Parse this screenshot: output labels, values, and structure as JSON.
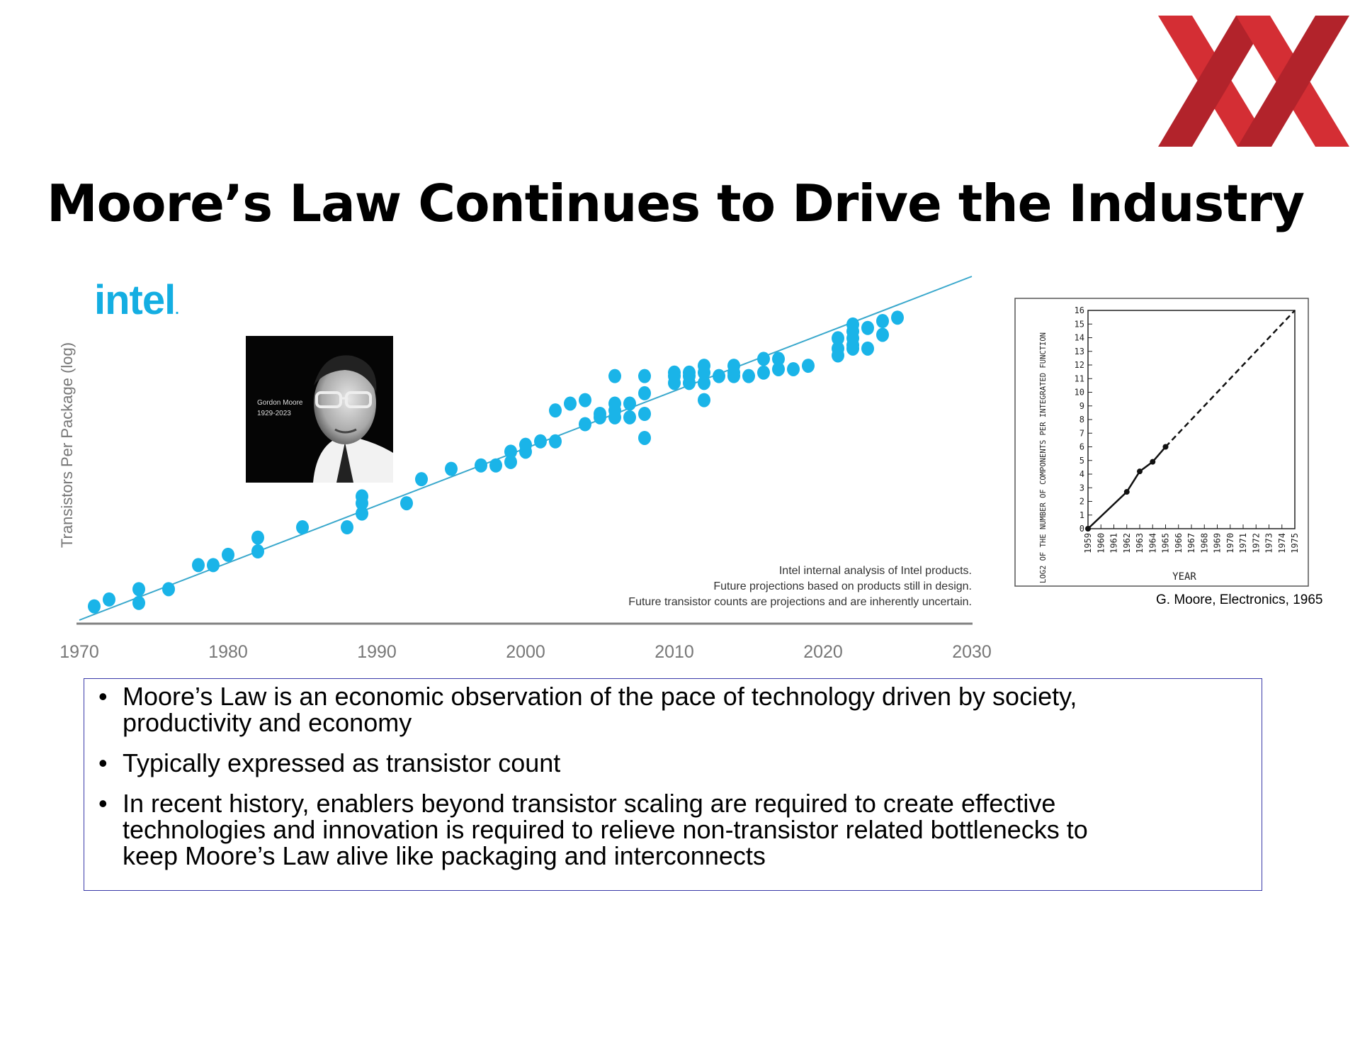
{
  "slide": {
    "title": "Moore’s Law Continues to Drive the Industry",
    "logo_colors": [
      "#d42e34",
      "#b2232b"
    ]
  },
  "intel_chart": {
    "brand": "intel",
    "brand_color": "#14aee2",
    "photo_name": "Gordon Moore",
    "photo_dates": "1929-2023",
    "notes": [
      "Intel internal analysis of Intel products.",
      "Future projections based on products still in design.",
      "Future transistor counts are projections and are inherently uncertain."
    ]
  },
  "moore_1965": {
    "caption": "G. Moore, Electronics, 1965"
  },
  "bullets": [
    {
      "line1": "Moore’s Law is an economic observation of the pace of technology driven by society,",
      "line2": "productivity and economy"
    },
    {
      "line1": "Typically expressed as transistor count",
      "line2": ""
    },
    {
      "line1": "In recent history, enablers beyond transistor scaling are required to create effective",
      "line2": "technologies and innovation is required to relieve non-transistor related bottlenecks to",
      "line3": "keep Moore’s Law alive like packaging and interconnects"
    }
  ],
  "chart_data": [
    {
      "type": "scatter",
      "title": "",
      "xlabel": "",
      "ylabel": "Transistors Per Package (log)",
      "xlim": [
        1970,
        2030
      ],
      "x_ticks": [
        "1970",
        "1980",
        "1990",
        "2000",
        "2010",
        "2020",
        "2030"
      ],
      "y_scale": "log",
      "y_unit": "relative position on log axis (0 = baseline, 100 = top)",
      "grid": false,
      "legend": "none",
      "marker_color": "#1ab4e8",
      "trend_color": "#3aa8cc",
      "trendline": [
        [
          1970,
          0
        ],
        [
          2030,
          100
        ]
      ],
      "points": [
        [
          1971,
          4
        ],
        [
          1972,
          6
        ],
        [
          1974,
          5
        ],
        [
          1974,
          9
        ],
        [
          1976,
          9
        ],
        [
          1978,
          16
        ],
        [
          1979,
          16
        ],
        [
          1980,
          19
        ],
        [
          1982,
          20
        ],
        [
          1982,
          24
        ],
        [
          1985,
          27
        ],
        [
          1988,
          27
        ],
        [
          1989,
          31
        ],
        [
          1989,
          34
        ],
        [
          1989,
          36
        ],
        [
          1992,
          34
        ],
        [
          1993,
          41
        ],
        [
          1995,
          44
        ],
        [
          1997,
          45
        ],
        [
          1998,
          45
        ],
        [
          1999,
          46
        ],
        [
          1999,
          49
        ],
        [
          2000,
          49
        ],
        [
          2000,
          51
        ],
        [
          2001,
          52
        ],
        [
          2002,
          52
        ],
        [
          2002,
          61
        ],
        [
          2003,
          63
        ],
        [
          2004,
          57
        ],
        [
          2004,
          64
        ],
        [
          2005,
          59
        ],
        [
          2005,
          60
        ],
        [
          2006,
          59
        ],
        [
          2006,
          61
        ],
        [
          2006,
          63
        ],
        [
          2006,
          71
        ],
        [
          2007,
          59
        ],
        [
          2007,
          63
        ],
        [
          2008,
          53
        ],
        [
          2008,
          60
        ],
        [
          2008,
          66
        ],
        [
          2008,
          71
        ],
        [
          2010,
          69
        ],
        [
          2010,
          71
        ],
        [
          2010,
          72
        ],
        [
          2011,
          69
        ],
        [
          2011,
          71
        ],
        [
          2011,
          72
        ],
        [
          2012,
          64
        ],
        [
          2012,
          69
        ],
        [
          2012,
          72
        ],
        [
          2012,
          74
        ],
        [
          2013,
          71
        ],
        [
          2014,
          71
        ],
        [
          2014,
          72
        ],
        [
          2014,
          74
        ],
        [
          2015,
          71
        ],
        [
          2016,
          72
        ],
        [
          2016,
          76
        ],
        [
          2017,
          73
        ],
        [
          2017,
          76
        ],
        [
          2018,
          73
        ],
        [
          2019,
          74
        ],
        [
          2021,
          77
        ],
        [
          2021,
          79
        ],
        [
          2021,
          82
        ],
        [
          2022,
          79
        ],
        [
          2022,
          80
        ],
        [
          2022,
          82
        ],
        [
          2022,
          84
        ],
        [
          2022,
          86
        ],
        [
          2023,
          79
        ],
        [
          2023,
          85
        ],
        [
          2024,
          83
        ],
        [
          2024,
          87
        ],
        [
          2025,
          88
        ]
      ]
    },
    {
      "type": "line",
      "title": "",
      "xlabel": "YEAR",
      "ylabel": "LOG2 OF THE NUMBER OF COMPONENTS PER INTEGRATED FUNCTION",
      "xlim": [
        1959,
        1975
      ],
      "ylim": [
        0,
        16
      ],
      "x_ticks": [
        "1959",
        "1960",
        "1961",
        "1962",
        "1963",
        "1964",
        "1965",
        "1966",
        "1967",
        "1968",
        "1969",
        "1970",
        "1971",
        "1972",
        "1973",
        "1974",
        "1975"
      ],
      "y_ticks": [
        "0",
        "1",
        "2",
        "3",
        "4",
        "5",
        "6",
        "7",
        "8",
        "9",
        "10",
        "11",
        "12",
        "13",
        "14",
        "15",
        "16"
      ],
      "grid": false,
      "legend": "none",
      "series": [
        {
          "x": [
            1959,
            1962,
            1963,
            1964,
            1965
          ],
          "y": [
            0,
            2.7,
            4.2,
            4.9,
            6
          ],
          "style": "solid"
        },
        {
          "x": [
            1965,
            1975
          ],
          "y": [
            6,
            16
          ],
          "style": "dashed"
        }
      ]
    }
  ]
}
